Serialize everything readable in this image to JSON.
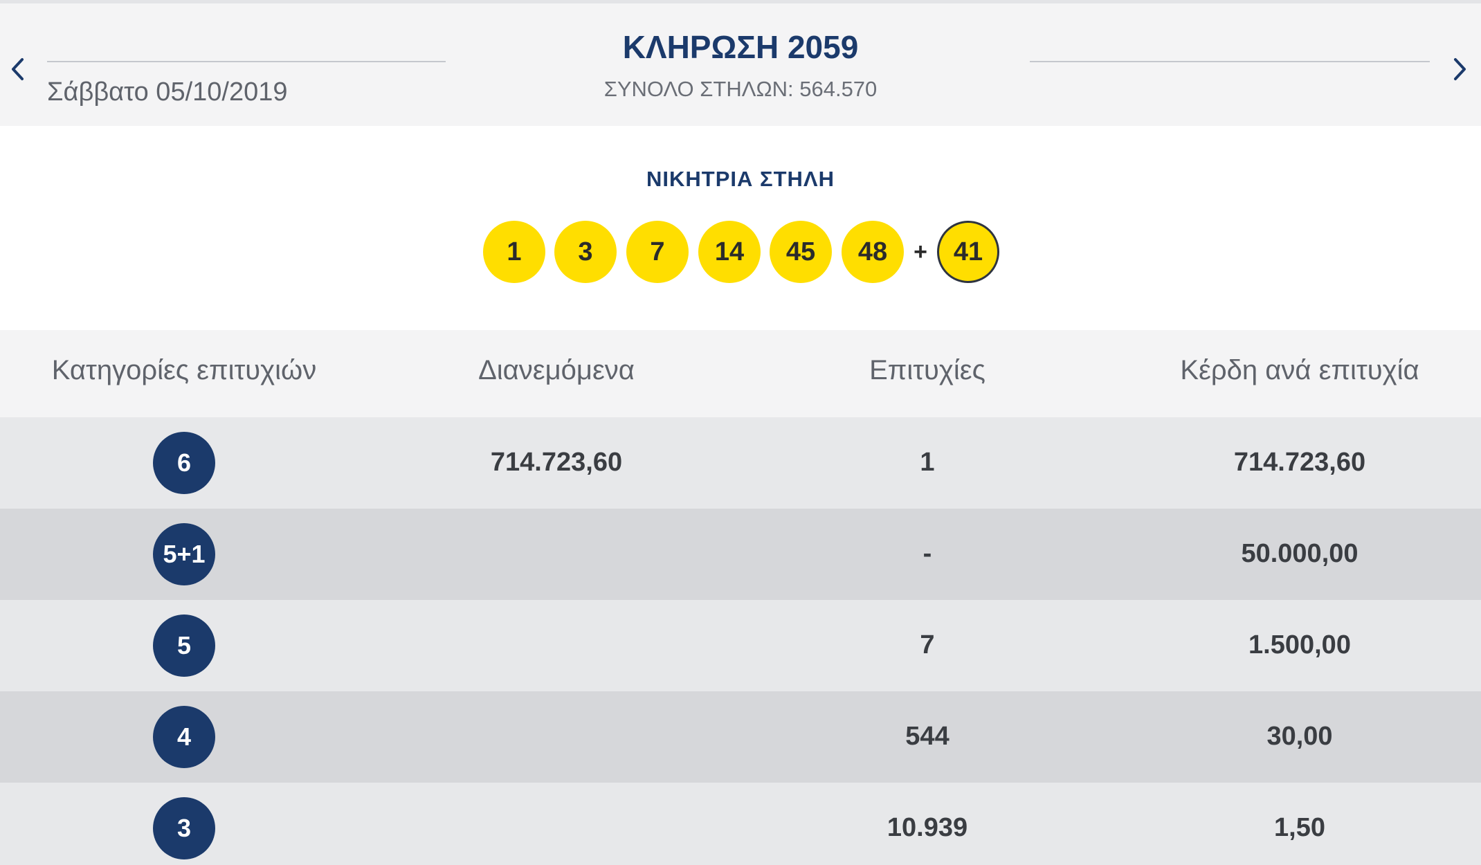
{
  "draw": {
    "title": "ΚΛΗΡΩΣΗ 2059",
    "date": "Σάββατο 05/10/2019",
    "total_columns": "ΣΥΝΟΛΟ ΣΤΗΛΩΝ: 564.570"
  },
  "navigation": {
    "prev_icon": "chevron-left-icon",
    "next_icon": "chevron-right-icon"
  },
  "winning_column": {
    "label": "ΝΙΚΗΤΡΙΑ ΣΤΗΛΗ",
    "numbers": [
      "1",
      "3",
      "7",
      "14",
      "45",
      "48"
    ],
    "plus": "+",
    "joker": "41"
  },
  "table": {
    "headers": [
      "Κατηγορίες επιτυχιών",
      "Διανεμόμενα",
      "Επιτυχίες",
      "Κέρδη ανά επιτυχία"
    ],
    "rows": [
      {
        "category": "6",
        "distributed": "714.723,60",
        "winners": "1",
        "prize": "714.723,60"
      },
      {
        "category": "5+1",
        "distributed": "",
        "winners": "-",
        "prize": "50.000,00"
      },
      {
        "category": "5",
        "distributed": "",
        "winners": "7",
        "prize": "1.500,00"
      },
      {
        "category": "4",
        "distributed": "",
        "winners": "544",
        "prize": "30,00"
      },
      {
        "category": "3",
        "distributed": "",
        "winners": "10.939",
        "prize": "1,50"
      }
    ]
  },
  "colors": {
    "brand_blue": "#1b3a6b",
    "ball_yellow": "#ffde00"
  }
}
